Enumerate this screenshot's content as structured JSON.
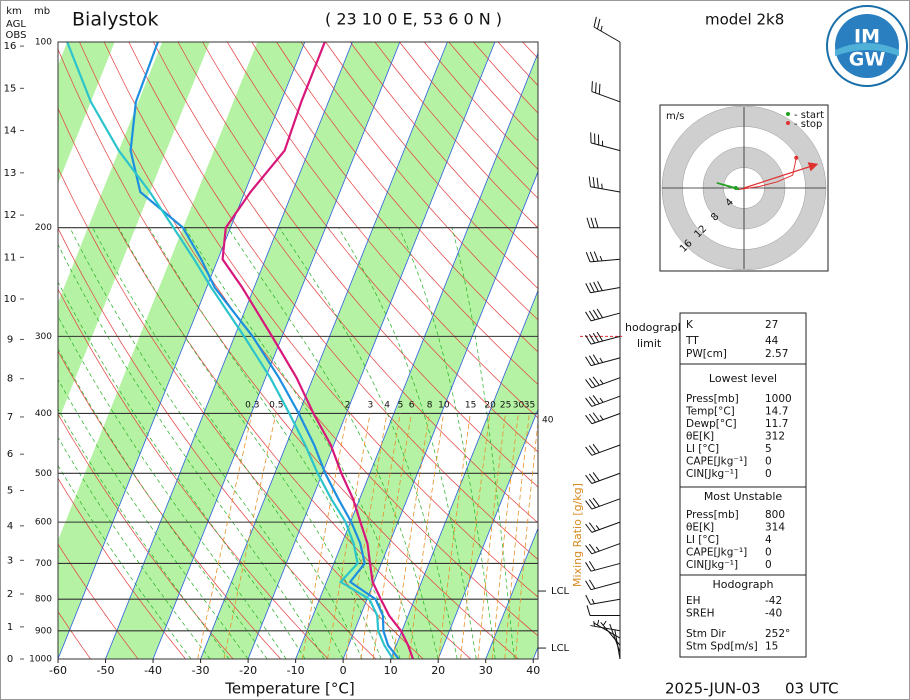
{
  "chart_data": {
    "type": "skewt",
    "title": "Bialystok",
    "location": "( 23 10 0 E, 53 6 0 N )",
    "model": "model 2k8",
    "xlabel": "Temperature [°C]",
    "date": "2025-JUN-03",
    "time": "03 UTC",
    "height_axis_header": [
      "km",
      "AGL",
      "OBS"
    ],
    "pressure_axis_header": "mb",
    "xlim": [
      -60,
      41
    ],
    "xticks": [
      -60,
      -50,
      -40,
      -30,
      -20,
      -10,
      0,
      10,
      20,
      30,
      40
    ],
    "ylim": [
      1000,
      100
    ],
    "yticks": [
      100,
      200,
      300,
      400,
      500,
      600,
      700,
      800,
      900,
      1000
    ],
    "height_ticks": [
      0,
      1,
      2,
      3,
      4,
      5,
      6,
      7,
      8,
      9,
      10,
      11,
      12,
      13,
      14,
      15,
      16
    ],
    "levels": [
      1000,
      950,
      900,
      850,
      800,
      750,
      700,
      650,
      600,
      550,
      500,
      450,
      400,
      350,
      300,
      250,
      225,
      200,
      175,
      150,
      125,
      100
    ],
    "series": [
      {
        "color": "#d8177a",
        "values": [
          14.7,
          12.5,
          9.8,
          6.0,
          2.9,
          -0.3,
          -2.4,
          -4.6,
          -7.9,
          -11.4,
          -16.0,
          -20.6,
          -26.9,
          -33.5,
          -42.1,
          -52.5,
          -59.0,
          -61.0,
          -58.8,
          -55.1,
          -55.7,
          -55.8
        ]
      },
      {
        "color": "#1e8fe0",
        "values": [
          11.7,
          8.3,
          6.1,
          4.7,
          1.8,
          -5.0,
          -3.5,
          -6.1,
          -9.8,
          -14.5,
          -19.4,
          -24.1,
          -30.0,
          -37.2,
          -46.2,
          -58.3,
          -63.5,
          -70.0,
          -82.0,
          -87.5,
          -90.5,
          -90.9
        ]
      },
      {
        "color": "#2cc4cc",
        "values": [
          10.5,
          7.5,
          5.0,
          3.5,
          0.5,
          -7.0,
          -5.0,
          -7.5,
          -11.0,
          -16.0,
          -21.0,
          -26.0,
          -32.0,
          -39.0,
          -48.0,
          -59.0,
          -65.0,
          -72.0,
          -80.0,
          -90.0,
          -100.0,
          -110.0
        ]
      }
    ],
    "mixing_ratio_label": "Mixing Ratio [g/kg]",
    "mixing_ratios": [
      0.3,
      0.5,
      2,
      3,
      4,
      5,
      6,
      8,
      10,
      15,
      20,
      25,
      30,
      35,
      40
    ],
    "lcl": {
      "label": "LCL",
      "pressure": [
        776,
        960
      ]
    },
    "hodograph_limit": {
      "label": [
        "hodograph",
        "limit"
      ],
      "pressure": 300
    },
    "wind": {
      "pressure": [
        100,
        125,
        150,
        175,
        200,
        225,
        250,
        275,
        300,
        325,
        350,
        375,
        400,
        450,
        500,
        550,
        600,
        650,
        700,
        750,
        800,
        850,
        900,
        925,
        950,
        975,
        1000
      ],
      "direction": [
        300,
        290,
        285,
        280,
        270,
        265,
        260,
        255,
        255,
        255,
        250,
        250,
        250,
        250,
        250,
        250,
        250,
        250,
        255,
        255,
        260,
        270,
        280,
        300,
        320,
        340,
        350
      ],
      "speed": [
        25,
        30,
        35,
        35,
        30,
        35,
        40,
        40,
        40,
        35,
        35,
        35,
        35,
        30,
        30,
        30,
        25,
        25,
        20,
        20,
        15,
        12,
        8,
        5,
        5,
        3,
        2
      ]
    }
  },
  "hodograph": {
    "units": "m/s",
    "start_label": "- start",
    "stop_label": "- stop",
    "rings": [
      4,
      8,
      12,
      16
    ],
    "u": [
      -1.6,
      -5.3,
      -1.0,
      3.0,
      6.5,
      9.5,
      10.2
    ],
    "v": [
      0,
      1.0,
      -0.3,
      0.3,
      1.2,
      2.5,
      5.9
    ]
  },
  "indices": {
    "rows": [
      [
        "K",
        27
      ],
      [
        "TT",
        44
      ],
      [
        "PW[cm]",
        2.57
      ]
    ]
  },
  "lowest_level": {
    "title": "Lowest level",
    "rows": [
      [
        "Press[mb]",
        1000
      ],
      [
        "Temp[°C]",
        14.7
      ],
      [
        "Dewp[°C]",
        11.7
      ],
      [
        "θE[K]",
        312
      ],
      [
        "LI [°C]",
        5
      ],
      [
        "CAPE[Jkg⁻¹]",
        0
      ],
      [
        "CIN[Jkg⁻¹]",
        0
      ]
    ]
  },
  "most_unstable": {
    "title": "Most Unstable",
    "rows": [
      [
        "Press[mb]",
        800
      ],
      [
        "θE[K]",
        314
      ],
      [
        "LI [°C]",
        4
      ],
      [
        "CAPE[Jkg⁻¹]",
        0
      ],
      [
        "CIN[Jkg⁻¹]",
        0
      ]
    ]
  },
  "hodograph_params": {
    "title": "Hodograph",
    "rows": [
      [
        "EH",
        -42
      ],
      [
        "SREH",
        -40
      ],
      [
        "Stm Dir",
        {
          "value": 252,
          "label": "252°"
        }
      ],
      [
        "Stm Spd[m/s]",
        15
      ]
    ]
  },
  "logo": [
    "IM",
    "GW"
  ]
}
